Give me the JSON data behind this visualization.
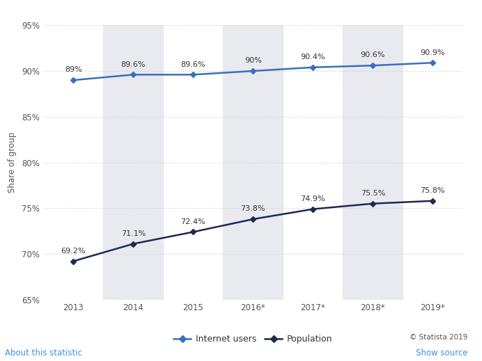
{
  "x_labels": [
    "2013",
    "2014",
    "2015",
    "2016*",
    "2017*",
    "2018*",
    "2019*"
  ],
  "x_values": [
    0,
    1,
    2,
    3,
    4,
    5,
    6
  ],
  "internet_users": [
    89.0,
    89.6,
    89.6,
    90.0,
    90.4,
    90.6,
    90.9
  ],
  "population": [
    69.2,
    71.1,
    72.4,
    73.8,
    74.9,
    75.5,
    75.8
  ],
  "internet_labels": [
    "89%",
    "89.6%",
    "89.6%",
    "90%",
    "90.4%",
    "90.6%",
    "90.9%"
  ],
  "population_labels": [
    "69.2%",
    "71.1%",
    "72.4%",
    "73.8%",
    "74.9%",
    "75.5%",
    "75.8%"
  ],
  "internet_color": "#3a6fba",
  "population_color": "#1c2951",
  "ylabel": "Share of group",
  "ylim_min": 65,
  "ylim_max": 95,
  "yticks": [
    65,
    70,
    75,
    80,
    85,
    90,
    95
  ],
  "ytick_labels": [
    "65%",
    "70%",
    "75%",
    "80%",
    "85%",
    "90%",
    "95%"
  ],
  "background_color": "#ffffff",
  "col_bg_color": "#e8eaf0",
  "grid_color": "#cccccc",
  "legend_internet": "Internet users",
  "legend_population": "Population",
  "footer_text": "© Statista 2019",
  "about_text": "About this statistic",
  "source_text": "Show source",
  "shaded_columns": [
    1,
    3,
    5
  ]
}
